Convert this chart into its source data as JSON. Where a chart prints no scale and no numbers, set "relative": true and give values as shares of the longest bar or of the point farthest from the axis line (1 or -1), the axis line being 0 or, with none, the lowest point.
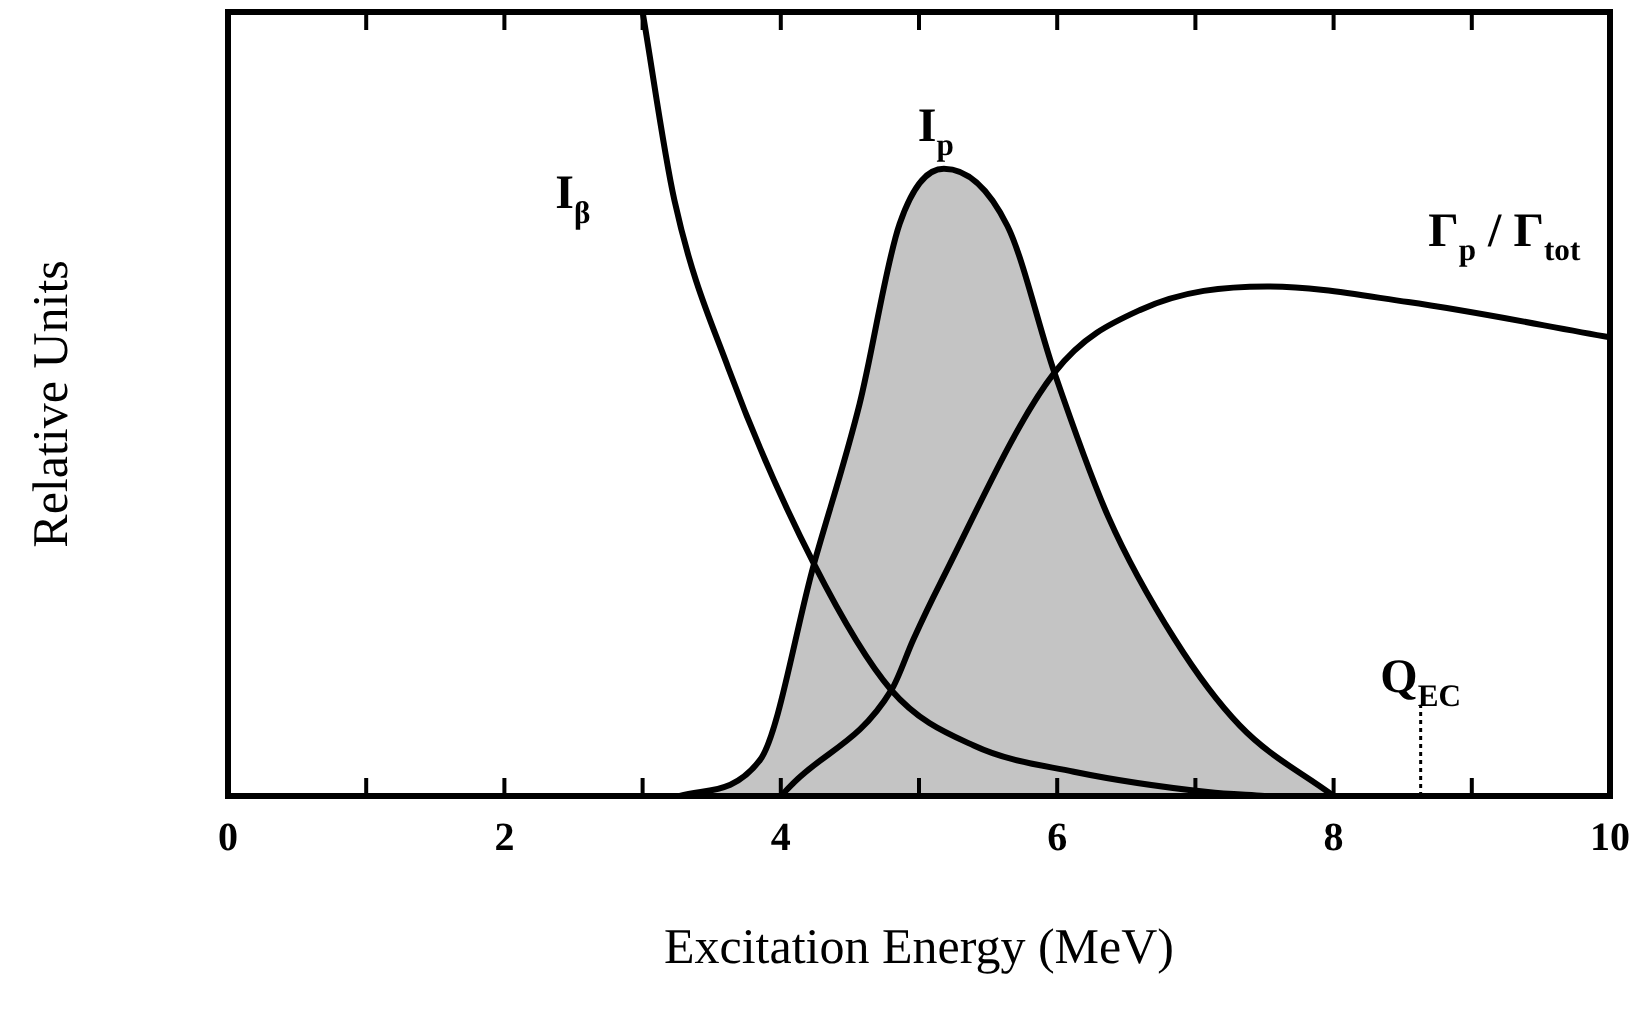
{
  "chart_data": {
    "type": "line",
    "xlabel": "Excitation Energy (MeV)",
    "ylabel": "Relative Units",
    "relative": true,
    "xlim": [
      0,
      10
    ],
    "xticks": [
      0,
      {
        "value": 1,
        "label": null
      },
      2,
      {
        "value": 3,
        "label": null
      },
      4,
      {
        "value": 5,
        "label": null
      },
      6,
      {
        "value": 7,
        "label": null
      },
      8,
      {
        "value": 9,
        "label": null
      },
      10
    ],
    "tick_labels": "x",
    "grid": false,
    "legend": false,
    "marker": "none",
    "line_style": "solid",
    "series": [
      {
        "name": "I$_{p}$",
        "type": "area",
        "color": "#c4c4c4",
        "x": [
          3.27,
          3.85,
          4.24,
          4.57,
          4.86,
          5.18,
          5.64,
          5.98,
          6.37,
          6.85,
          7.32,
          8.0
        ],
        "values": [
          0,
          0.046,
          0.296,
          0.5,
          0.73,
          0.8,
          0.727,
          0.54,
          0.356,
          0.2,
          0.09,
          0
        ]
      },
      {
        "name": "I$_{β}$",
        "color": "#000000",
        "x": [
          3.0,
          3.23,
          3.62,
          4.24,
          4.8,
          5.4,
          6.12,
          7.09,
          7.5
        ],
        "values": [
          1,
          0.76,
          0.546,
          0.296,
          0.135,
          0.064,
          0.031,
          0.005,
          0
        ]
      },
      {
        "name": "Γ$_{p}$ / Γ$_{tot}$",
        "color": "#000000",
        "x": [
          4.0,
          4.1,
          4.8,
          4.96,
          5.15,
          5.98,
          6.6,
          7.52,
          8.54,
          10
        ],
        "values": [
          0,
          0.018,
          0.135,
          0.2,
          0.27,
          0.54,
          0.62,
          0.65,
          0.63,
          0.585
        ]
      }
    ],
    "ref_lines": [
      {
        "axis": "x",
        "value": 8.63,
        "label": "Q$_{EC}$",
        "line_style": "dotted"
      }
    ]
  }
}
